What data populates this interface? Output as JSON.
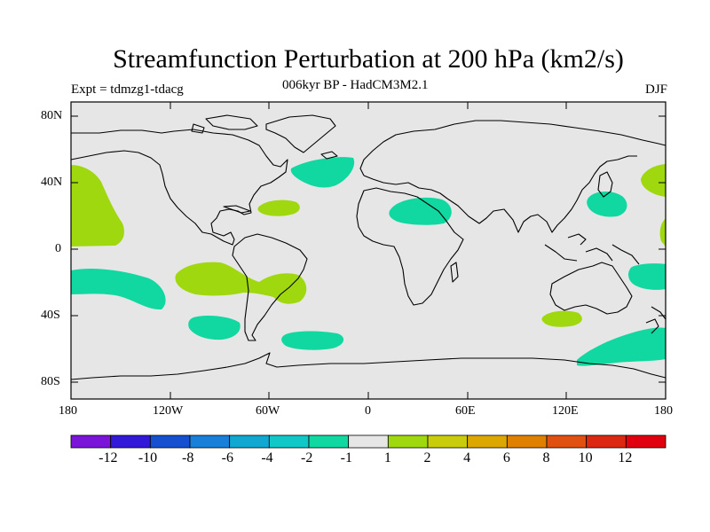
{
  "map": {
    "title": "Streamfunction Perturbation at 200 hPa (km2/s)",
    "subtitle": "006kyr BP - HadCM3M2.1",
    "experiment": "Expt = tdmzg1-tdacg",
    "season": "DJF",
    "lat_labels": [
      "80N",
      "40N",
      "0",
      "40S",
      "80S"
    ],
    "lon_labels": [
      "180",
      "120W",
      "60W",
      "0",
      "60E",
      "120E",
      "180"
    ],
    "colorbar": {
      "labels": [
        "-12",
        "-10",
        "-8",
        "-6",
        "-4",
        "-2",
        "-1",
        "1",
        "2",
        "4",
        "6",
        "8",
        "10",
        "12"
      ],
      "colors": [
        "#7a14d8",
        "#3218d8",
        "#1450d0",
        "#1880d8",
        "#10a8d0",
        "#10c8c8",
        "#10d8a0",
        "#e6e6e6",
        "#a0d810",
        "#c8cc0a",
        "#dca800",
        "#e08000",
        "#e05010",
        "#dc2810",
        "#e00010"
      ]
    },
    "colors": {
      "background": "#e6e6e6",
      "negative_fill": "#10d8a0",
      "positive_fill": "#a0d810",
      "coast": "#000000"
    }
  }
}
